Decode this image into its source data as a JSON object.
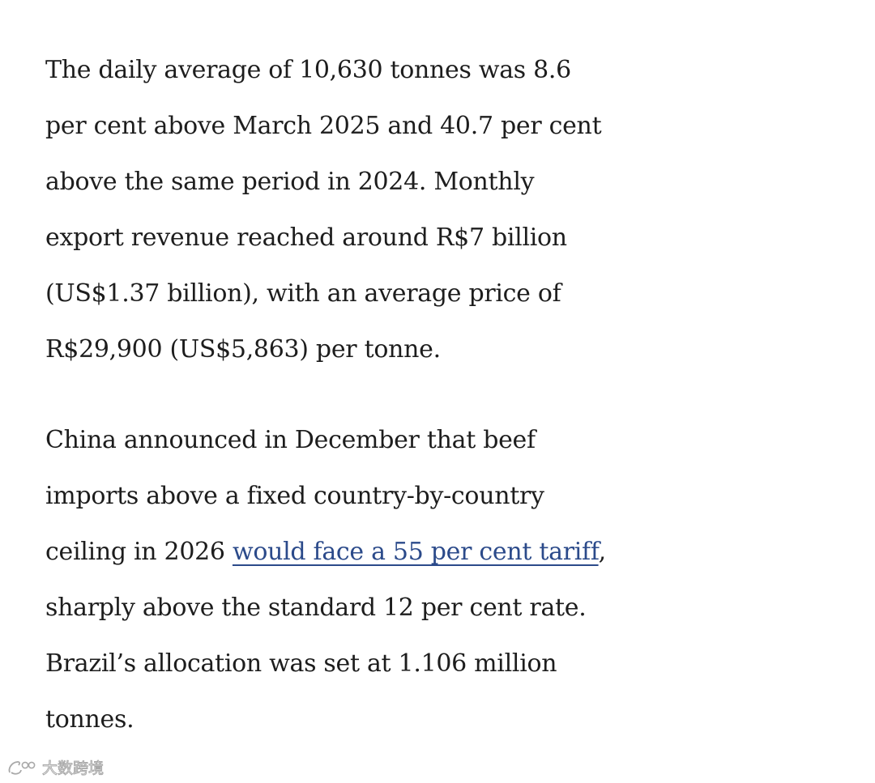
{
  "article": {
    "paragraphs": [
      {
        "lines": [
          "The daily average of 10,630 tonnes was 8.6",
          "per cent above March 2025 and 40.7 per cent",
          "above the same period in 2024. Monthly",
          "export revenue reached around R$7 billion",
          "(US$1.37 billion), with an average price of",
          "R$29,900 (US$5,863) per tonne."
        ]
      },
      {
        "line1": "China announced in December that beef",
        "line2": "imports above a fixed country-by-country",
        "line3_before_link": "ceiling in 2026 ",
        "link_text": "would face a 55 per cent tariff",
        "line3_after_link": ",",
        "line4": "sharply above the standard 12 per cent rate.",
        "line5": "Brazil’s allocation was set at 1.106 million",
        "line6": "tonnes."
      }
    ],
    "link_color": "#2b4a8a",
    "text_color": "#1d1d1d"
  },
  "watermark": {
    "text": "大数跨境",
    "logo_icon": "weibo-like-logo-icon"
  }
}
